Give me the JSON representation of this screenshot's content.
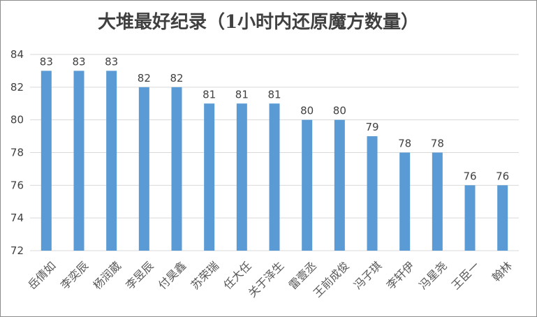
{
  "chart_data": {
    "type": "bar",
    "title": "大堆最好纪录（1小时内还原魔方数量）",
    "categories": [
      "岳倩如",
      "李奕辰",
      "杨润葳",
      "李昱辰",
      "付昊鑫",
      "苏荣瑞",
      "任大任",
      "关于泽生",
      "雷壹丞",
      "王前成俊",
      "冯子琪",
      "李轩伊",
      "冯星尧",
      "王臣一",
      "翰林"
    ],
    "values": [
      83,
      83,
      83,
      82,
      82,
      81,
      81,
      81,
      80,
      80,
      79,
      78,
      78,
      76,
      76
    ],
    "ylim": [
      72,
      84
    ],
    "yticks": [
      72,
      74,
      76,
      78,
      80,
      82,
      84
    ],
    "xlabel": "",
    "ylabel": "",
    "grid": true,
    "data_labels": true,
    "colors": {
      "bar": "#5b9bd5",
      "grid": "#d9d9d9",
      "text": "#404040"
    }
  }
}
